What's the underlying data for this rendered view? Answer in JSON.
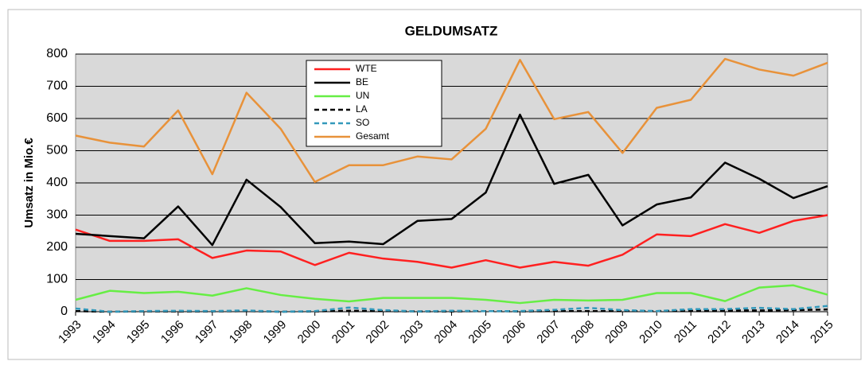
{
  "chart_data": {
    "type": "line",
    "title": "GELDUMSATZ",
    "y_label": "Umsatz in Mio.€",
    "categories": [
      "1993",
      "1994",
      "1995",
      "1996",
      "1997",
      "1998",
      "1999",
      "2000",
      "2001",
      "2002",
      "2003",
      "2004",
      "2005",
      "2006",
      "2007",
      "2008",
      "2009",
      "2010",
      "2011",
      "2012",
      "2013",
      "2014",
      "2015"
    ],
    "series": [
      {
        "name": "WTE",
        "color": "#ff2020",
        "dash": false,
        "values": [
          255,
          220,
          220,
          225,
          167,
          190,
          187,
          145,
          183,
          165,
          155,
          137,
          160,
          137,
          155,
          143,
          177,
          240,
          235,
          272,
          245,
          282,
          300
        ]
      },
      {
        "name": "BE",
        "color": "#000000",
        "dash": false,
        "values": [
          242,
          235,
          228,
          327,
          207,
          410,
          325,
          213,
          218,
          210,
          282,
          288,
          370,
          612,
          397,
          425,
          268,
          333,
          355,
          463,
          413,
          353,
          390
        ]
      },
      {
        "name": "UN",
        "color": "#66ee44",
        "dash": false,
        "values": [
          37,
          65,
          58,
          62,
          50,
          73,
          52,
          40,
          32,
          43,
          43,
          43,
          37,
          27,
          37,
          35,
          37,
          58,
          58,
          33,
          75,
          82,
          53
        ]
      },
      {
        "name": "LA",
        "color": "#000000",
        "dash": true,
        "values": [
          2,
          0,
          1,
          1,
          1,
          2,
          0,
          1,
          3,
          2,
          1,
          1,
          2,
          1,
          2,
          2,
          2,
          2,
          3,
          4,
          4,
          5,
          7
        ]
      },
      {
        "name": "SO",
        "color": "#3399bb",
        "dash": true,
        "values": [
          10,
          0,
          2,
          3,
          2,
          4,
          0,
          2,
          13,
          5,
          1,
          3,
          2,
          2,
          6,
          12,
          5,
          2,
          8,
          8,
          12,
          8,
          18
        ]
      },
      {
        "name": "Gesamt",
        "color": "#e8923a",
        "dash": false,
        "values": [
          547,
          525,
          513,
          625,
          427,
          680,
          568,
          403,
          455,
          455,
          482,
          473,
          568,
          782,
          598,
          620,
          493,
          633,
          658,
          785,
          752,
          733,
          773
        ]
      }
    ],
    "ylim": [
      0,
      800
    ],
    "yticks": [
      0,
      100,
      200,
      300,
      400,
      500,
      600,
      700,
      800
    ],
    "grid": true,
    "legend": "upper center"
  }
}
